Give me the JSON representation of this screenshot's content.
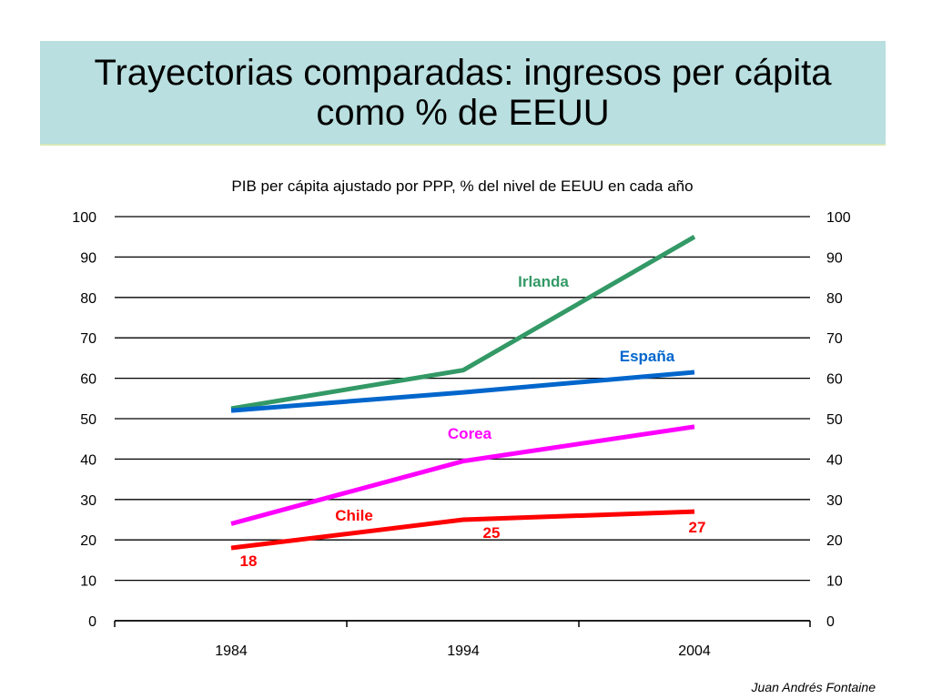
{
  "slide": {
    "title": "Trayectorias comparadas: ingresos per cápita como % de EEUU",
    "footer": "Juan Andrés Fontaine"
  },
  "chart_data": {
    "type": "line",
    "title": "PIB per cápita ajustado por PPP, % del nivel de EEUU en cada año",
    "xlabel": "",
    "ylabel": "",
    "categories": [
      "1984",
      "1994",
      "2004"
    ],
    "ylim": [
      0,
      100
    ],
    "yticks": [
      0,
      10,
      20,
      30,
      40,
      50,
      60,
      70,
      80,
      90,
      100
    ],
    "grid": true,
    "secondary_axis": true,
    "series": [
      {
        "name": "Irlanda",
        "values": [
          52.5,
          62,
          95
        ],
        "color": "#339966"
      },
      {
        "name": "España",
        "values": [
          52,
          56.5,
          61.5
        ],
        "color": "#0066cc"
      },
      {
        "name": "Corea",
        "values": [
          24,
          39.5,
          48
        ],
        "color": "#ff00ff"
      },
      {
        "name": "Chile",
        "values": [
          18,
          25,
          27
        ],
        "color": "#ff0000"
      }
    ],
    "data_labels": [
      {
        "series": "Chile",
        "index": 0,
        "text": "18"
      },
      {
        "series": "Chile",
        "index": 1,
        "text": "25"
      },
      {
        "series": "Chile",
        "index": 2,
        "text": "27"
      }
    ]
  }
}
